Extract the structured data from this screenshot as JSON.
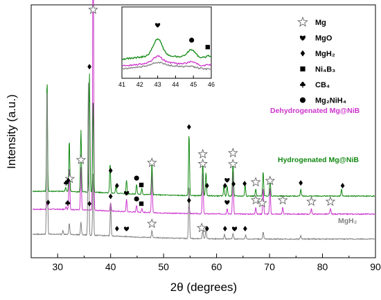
{
  "chart_data": {
    "type": "line",
    "xlabel": "2θ (degrees)",
    "ylabel": "Intensity (a.u.)",
    "xlim": [
      25,
      90
    ],
    "xticks": [
      30,
      40,
      50,
      60,
      70,
      80,
      90
    ],
    "ytick_labels": false,
    "grid": false,
    "legend_position": "top-right",
    "legend": [
      {
        "symbol": "star",
        "label": "Mg"
      },
      {
        "symbol": "heart",
        "label": "MgO"
      },
      {
        "symbol": "diamond",
        "label": "MgH₂"
      },
      {
        "symbol": "square",
        "label": "Ni₄B₃"
      },
      {
        "symbol": "club",
        "label": "CB₄"
      },
      {
        "symbol": "circle",
        "label": "Mg₂NiH₄"
      }
    ],
    "series": [
      {
        "name": "Dehydrogenated Mg@NiB",
        "color": "#cc33cc",
        "baseline": 0.36,
        "peaks": [
          [
            28.0,
            0.1
          ],
          [
            31.6,
            0.04
          ],
          [
            32.2,
            0.62
          ],
          [
            34.4,
            0.62
          ],
          [
            36.7,
            4.3
          ],
          [
            40.0,
            0.12
          ],
          [
            43.0,
            0.18
          ],
          [
            44.9,
            0.1
          ],
          [
            45.9,
            0.06
          ],
          [
            47.8,
            0.62
          ],
          [
            54.8,
            0.1
          ],
          [
            57.4,
            0.62
          ],
          [
            62.0,
            0.08
          ],
          [
            63.1,
            0.62
          ],
          [
            67.4,
            0.1
          ],
          [
            68.8,
            0.38
          ],
          [
            70.1,
            0.38
          ],
          [
            72.5,
            0.1
          ],
          [
            77.9,
            0.08
          ],
          [
            81.5,
            0.08
          ]
        ],
        "markers": [
          [
            "diamond",
            28.2
          ],
          [
            "club",
            31.9
          ],
          [
            "star",
            32.3
          ],
          [
            "star",
            34.4
          ],
          [
            "diamond",
            36.0
          ],
          [
            "star",
            36.7
          ],
          [
            "diamond",
            40.0
          ],
          [
            "heart",
            43.0
          ],
          [
            "circle",
            44.9
          ],
          [
            "square",
            45.8
          ],
          [
            "star",
            47.8
          ],
          [
            "diamond",
            54.8
          ],
          [
            "star",
            57.4
          ],
          [
            "heart",
            62.0
          ],
          [
            "star",
            63.1
          ],
          [
            "diamond",
            63.2
          ],
          [
            "star",
            67.4
          ],
          [
            "star",
            68.6
          ],
          [
            "star",
            70.1
          ],
          [
            "star",
            72.5
          ],
          [
            "star",
            77.9
          ],
          [
            "star",
            81.5
          ]
        ]
      },
      {
        "name": "Hydrogenated Mg@NiB",
        "color": "#118811",
        "baseline": 0.62,
        "peaks": [
          [
            28.0,
            1.62
          ],
          [
            31.5,
            0.06
          ],
          [
            32.2,
            0.74
          ],
          [
            34.4,
            0.9
          ],
          [
            36.0,
            1.72
          ],
          [
            36.7,
            1.3
          ],
          [
            39.9,
            0.42
          ],
          [
            41.0,
            0.1
          ],
          [
            43.0,
            0.2
          ],
          [
            44.9,
            0.14
          ],
          [
            45.9,
            0.08
          ],
          [
            47.8,
            0.46
          ],
          [
            54.8,
            0.9
          ],
          [
            57.4,
            0.5
          ],
          [
            58.0,
            0.34
          ],
          [
            61.4,
            0.16
          ],
          [
            62.0,
            0.14
          ],
          [
            63.1,
            0.52
          ],
          [
            65.4,
            0.16
          ],
          [
            67.4,
            0.1
          ],
          [
            68.8,
            0.36
          ],
          [
            70.1,
            0.28
          ],
          [
            75.9,
            0.1
          ],
          [
            83.6,
            0.1
          ]
        ],
        "markers": [
          [
            "club",
            31.6
          ],
          [
            "diamond",
            32.0
          ],
          [
            "diamond",
            36.0
          ],
          [
            "diamond",
            40.0
          ],
          [
            "diamond",
            41.2
          ],
          [
            "circle",
            44.9
          ],
          [
            "square",
            45.8
          ],
          [
            "diamond",
            54.8
          ],
          [
            "star",
            57.4
          ],
          [
            "diamond",
            58.2
          ],
          [
            "diamond",
            61.6
          ],
          [
            "heart",
            62.0
          ],
          [
            "star",
            63.1
          ],
          [
            "diamond",
            65.3
          ],
          [
            "star",
            67.4
          ],
          [
            "diamond",
            75.9
          ],
          [
            "diamond",
            83.8
          ]
        ]
      },
      {
        "name": "MgH₂",
        "color": "#808080",
        "baseline": 0.0,
        "peaks": [
          [
            28.0,
            2.15
          ],
          [
            31.0,
            0.06
          ],
          [
            32.2,
            0.16
          ],
          [
            34.4,
            0.18
          ],
          [
            35.8,
            2.2
          ],
          [
            36.7,
            0.9
          ],
          [
            40.0,
            0.46
          ],
          [
            47.8,
            0.1
          ],
          [
            54.8,
            0.78
          ],
          [
            57.4,
            0.12
          ],
          [
            58.0,
            0.16
          ],
          [
            61.5,
            0.06
          ],
          [
            63.1,
            0.08
          ],
          [
            65.5,
            0.06
          ],
          [
            68.8,
            0.1
          ],
          [
            75.9,
            0.05
          ]
        ],
        "markers": [
          [
            "diamond",
            41.2
          ],
          [
            "heart",
            43.0
          ],
          [
            "star",
            47.8
          ],
          [
            "star",
            57.2
          ],
          [
            "diamond",
            58.2
          ],
          [
            "diamond",
            61.6
          ],
          [
            "heart",
            63.4
          ],
          [
            "diamond",
            65.4
          ]
        ]
      }
    ],
    "inset": {
      "xlim": [
        41,
        46
      ],
      "xticks": [
        41,
        42,
        43,
        44,
        45,
        46
      ],
      "series": [
        {
          "name": "Dehydrogenated Mg@NiB",
          "color": "#cc33cc"
        },
        {
          "name": "Hydrogenated Mg@NiB",
          "color": "#118811"
        },
        {
          "name": "MgH₂",
          "color": "#808080"
        }
      ],
      "markers": [
        [
          "heart",
          43.0
        ],
        [
          "circle",
          44.9
        ],
        [
          "square",
          45.8
        ]
      ]
    }
  }
}
